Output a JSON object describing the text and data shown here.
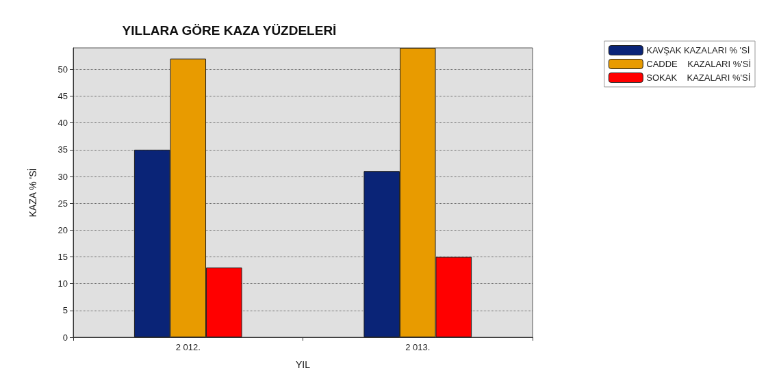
{
  "chart_data": {
    "type": "bar",
    "title": "YILLARA GÖRE KAZA YÜZDELERİ",
    "xlabel": "YIL",
    "ylabel": "KAZA % 'Sİ",
    "categories": [
      "2 012.",
      "2 013."
    ],
    "series": [
      {
        "name": "KAVŞAK KAZALARI % 'Sİ",
        "color": "#0a2477",
        "values": [
          35,
          31
        ]
      },
      {
        "name": "CADDE    KAZALARI %'Sİ",
        "color": "#e89b00",
        "values": [
          52,
          54
        ]
      },
      {
        "name": "SOKAK    KAZALARI %'Sİ",
        "color": "#ff0000",
        "values": [
          13,
          15
        ]
      }
    ],
    "ylim": [
      0,
      54
    ],
    "yticks": [
      0,
      5,
      10,
      15,
      20,
      25,
      30,
      35,
      40,
      45,
      50
    ],
    "grid": "y",
    "legend": "top right"
  }
}
